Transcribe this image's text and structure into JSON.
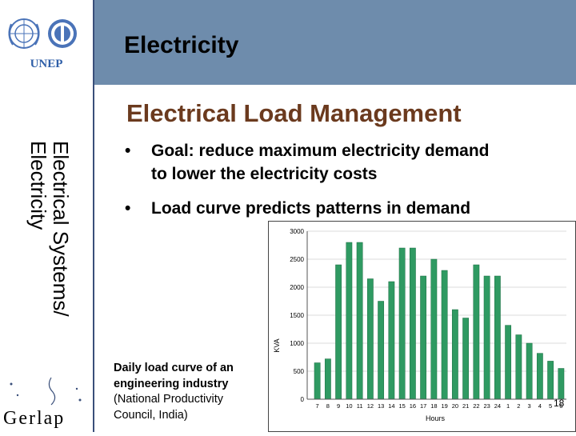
{
  "header": {
    "title": "Electricity",
    "logo_text": "UNEP"
  },
  "sidebar": {
    "vertical_line1": "Electrical Systems/",
    "vertical_line2": "Electricity",
    "footer_logo_text": "Gerlap"
  },
  "content": {
    "subtitle": "Electrical Load Management",
    "bullets": [
      {
        "dot": "•",
        "lines": [
          "Goal: reduce maximum electricity demand",
          "to lower the electricity costs"
        ]
      },
      {
        "dot": "•",
        "lines": [
          "Load curve predicts patterns in demand"
        ]
      }
    ],
    "caption": {
      "line1": "Daily load curve of an",
      "line2": "engineering industry",
      "line3": "(National Productivity",
      "line4": "Council, India)"
    }
  },
  "page_number": "18",
  "chart_data": {
    "type": "bar",
    "xlabel": "Hours",
    "ylabel": "KVA",
    "ylim": [
      0,
      3000
    ],
    "y_ticks": [
      "0",
      "500",
      "1000",
      "1500",
      "2000",
      "2500",
      "3000"
    ],
    "grid": true,
    "bar_color": "#2f9a62",
    "categories": [
      "7",
      "8",
      "9",
      "10",
      "11",
      "12",
      "13",
      "14",
      "15",
      "16",
      "17",
      "18",
      "19",
      "20",
      "21",
      "22",
      "23",
      "24",
      "1",
      "2",
      "3",
      "4",
      "5",
      "6"
    ],
    "values": [
      650,
      720,
      2400,
      2800,
      2800,
      2150,
      1750,
      2100,
      2700,
      2700,
      2200,
      2500,
      2300,
      1600,
      1450,
      2400,
      2200,
      2200,
      1320,
      1150,
      1000,
      820,
      680,
      550
    ]
  }
}
